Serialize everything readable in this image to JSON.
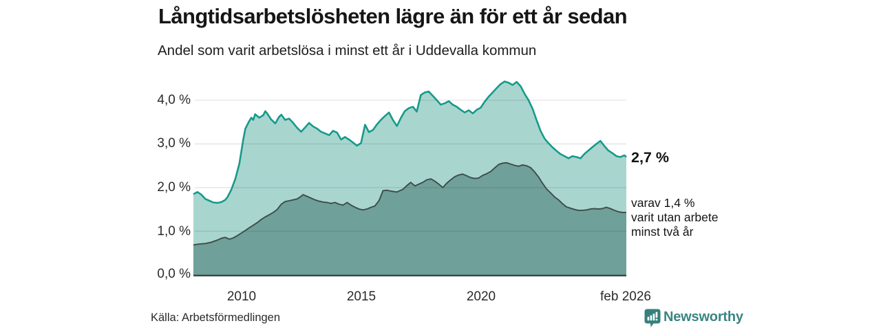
{
  "header": {
    "title": "Långtidsarbetslösheten lägre än för ett år sedan",
    "subtitle": "Andel som varit arbetslösa i minst ett år i Uddevalla kommun"
  },
  "chart": {
    "y_ticks": [
      "4,0 %",
      "3,0 %",
      "2,0 %",
      "1,0 %",
      "0,0 %"
    ],
    "x_ticks": [
      "2010",
      "2015",
      "2020",
      "feb 2026"
    ],
    "annotations": {
      "latest_total": "2,7 %",
      "sub_line1": "varav 1,4 %",
      "sub_line2": "varit utan arbete",
      "sub_line3": "minst två år"
    }
  },
  "footer": {
    "source": "Källa: Arbetsförmedlingen",
    "brand": "Newsworthy"
  },
  "colors": {
    "accent_teal": "#169a8a",
    "fill_light": "#a9d5cf",
    "fill_dark": "#6fa099",
    "line_dark": "#3d4c49",
    "baseline": "#3a4744",
    "gridline": "#d9d9d9",
    "brand_teal": "#35807c"
  },
  "chart_data": {
    "type": "area",
    "title": "Långtidsarbetslösheten lägre än för ett år sedan",
    "subtitle": "Andel som varit arbetslösa i minst ett år i Uddevalla kommun",
    "x_unit": "decimal_year",
    "x_range": [
      2008.0,
      2026.083
    ],
    "y_range": [
      0,
      4.6
    ],
    "y_ticks_pct": [
      0.0,
      1.0,
      2.0,
      3.0,
      4.0
    ],
    "x_tick_years": [
      2010,
      2015,
      2020,
      2026.083
    ],
    "grid": true,
    "latest": {
      "period": "feb 2026",
      "total_pct": 2.7,
      "two_years_pct": 1.4
    },
    "series": [
      {
        "name": "Arbetslösa minst ett år",
        "color": "#169a8a",
        "fill": "#a9d5cf",
        "points": [
          [
            2008.0,
            1.85
          ],
          [
            2008.17,
            1.9
          ],
          [
            2008.33,
            1.84
          ],
          [
            2008.5,
            1.74
          ],
          [
            2008.67,
            1.7
          ],
          [
            2008.83,
            1.66
          ],
          [
            2009.0,
            1.65
          ],
          [
            2009.17,
            1.67
          ],
          [
            2009.33,
            1.72
          ],
          [
            2009.42,
            1.78
          ],
          [
            2009.58,
            1.95
          ],
          [
            2009.75,
            2.2
          ],
          [
            2009.92,
            2.55
          ],
          [
            2010.08,
            3.1
          ],
          [
            2010.17,
            3.35
          ],
          [
            2010.33,
            3.52
          ],
          [
            2010.42,
            3.6
          ],
          [
            2010.5,
            3.55
          ],
          [
            2010.58,
            3.68
          ],
          [
            2010.75,
            3.6
          ],
          [
            2010.92,
            3.66
          ],
          [
            2011.0,
            3.75
          ],
          [
            2011.08,
            3.7
          ],
          [
            2011.25,
            3.56
          ],
          [
            2011.42,
            3.47
          ],
          [
            2011.58,
            3.62
          ],
          [
            2011.67,
            3.67
          ],
          [
            2011.83,
            3.55
          ],
          [
            2012.0,
            3.58
          ],
          [
            2012.17,
            3.48
          ],
          [
            2012.33,
            3.37
          ],
          [
            2012.5,
            3.28
          ],
          [
            2012.67,
            3.38
          ],
          [
            2012.83,
            3.48
          ],
          [
            2013.0,
            3.4
          ],
          [
            2013.17,
            3.35
          ],
          [
            2013.33,
            3.28
          ],
          [
            2013.5,
            3.24
          ],
          [
            2013.67,
            3.2
          ],
          [
            2013.83,
            3.3
          ],
          [
            2014.0,
            3.26
          ],
          [
            2014.17,
            3.1
          ],
          [
            2014.33,
            3.16
          ],
          [
            2014.5,
            3.1
          ],
          [
            2014.67,
            3.03
          ],
          [
            2014.83,
            2.96
          ],
          [
            2015.0,
            3.02
          ],
          [
            2015.17,
            3.44
          ],
          [
            2015.33,
            3.27
          ],
          [
            2015.5,
            3.32
          ],
          [
            2015.67,
            3.45
          ],
          [
            2015.83,
            3.55
          ],
          [
            2016.0,
            3.64
          ],
          [
            2016.17,
            3.72
          ],
          [
            2016.33,
            3.55
          ],
          [
            2016.5,
            3.41
          ],
          [
            2016.67,
            3.6
          ],
          [
            2016.83,
            3.75
          ],
          [
            2017.0,
            3.82
          ],
          [
            2017.17,
            3.85
          ],
          [
            2017.33,
            3.74
          ],
          [
            2017.5,
            4.12
          ],
          [
            2017.67,
            4.18
          ],
          [
            2017.83,
            4.2
          ],
          [
            2018.0,
            4.1
          ],
          [
            2018.17,
            4.0
          ],
          [
            2018.33,
            3.9
          ],
          [
            2018.5,
            3.93
          ],
          [
            2018.67,
            3.98
          ],
          [
            2018.83,
            3.9
          ],
          [
            2019.0,
            3.85
          ],
          [
            2019.17,
            3.78
          ],
          [
            2019.33,
            3.72
          ],
          [
            2019.5,
            3.77
          ],
          [
            2019.67,
            3.7
          ],
          [
            2019.83,
            3.78
          ],
          [
            2020.0,
            3.83
          ],
          [
            2020.17,
            3.97
          ],
          [
            2020.33,
            4.08
          ],
          [
            2020.5,
            4.18
          ],
          [
            2020.67,
            4.28
          ],
          [
            2020.83,
            4.37
          ],
          [
            2021.0,
            4.43
          ],
          [
            2021.17,
            4.4
          ],
          [
            2021.33,
            4.35
          ],
          [
            2021.5,
            4.42
          ],
          [
            2021.67,
            4.32
          ],
          [
            2021.83,
            4.15
          ],
          [
            2022.0,
            4.0
          ],
          [
            2022.17,
            3.8
          ],
          [
            2022.33,
            3.55
          ],
          [
            2022.5,
            3.3
          ],
          [
            2022.67,
            3.12
          ],
          [
            2022.83,
            3.02
          ],
          [
            2023.0,
            2.92
          ],
          [
            2023.17,
            2.84
          ],
          [
            2023.33,
            2.77
          ],
          [
            2023.5,
            2.72
          ],
          [
            2023.67,
            2.67
          ],
          [
            2023.83,
            2.72
          ],
          [
            2024.0,
            2.7
          ],
          [
            2024.17,
            2.67
          ],
          [
            2024.33,
            2.77
          ],
          [
            2024.5,
            2.85
          ],
          [
            2024.67,
            2.93
          ],
          [
            2024.83,
            3.0
          ],
          [
            2025.0,
            3.07
          ],
          [
            2025.17,
            2.95
          ],
          [
            2025.33,
            2.85
          ],
          [
            2025.5,
            2.79
          ],
          [
            2025.67,
            2.72
          ],
          [
            2025.83,
            2.7
          ],
          [
            2026.0,
            2.74
          ],
          [
            2026.083,
            2.7
          ]
        ]
      },
      {
        "name": "Varav utan arbete minst två år",
        "color": "#3d4c49",
        "fill": "#6fa099",
        "points": [
          [
            2008.0,
            0.69
          ],
          [
            2008.25,
            0.71
          ],
          [
            2008.5,
            0.72
          ],
          [
            2008.75,
            0.75
          ],
          [
            2009.0,
            0.8
          ],
          [
            2009.17,
            0.84
          ],
          [
            2009.33,
            0.86
          ],
          [
            2009.5,
            0.82
          ],
          [
            2009.67,
            0.85
          ],
          [
            2009.83,
            0.9
          ],
          [
            2010.0,
            0.96
          ],
          [
            2010.17,
            1.02
          ],
          [
            2010.33,
            1.08
          ],
          [
            2010.5,
            1.14
          ],
          [
            2010.67,
            1.2
          ],
          [
            2010.83,
            1.27
          ],
          [
            2011.0,
            1.33
          ],
          [
            2011.17,
            1.38
          ],
          [
            2011.33,
            1.43
          ],
          [
            2011.5,
            1.5
          ],
          [
            2011.67,
            1.62
          ],
          [
            2011.83,
            1.68
          ],
          [
            2012.0,
            1.7
          ],
          [
            2012.17,
            1.72
          ],
          [
            2012.33,
            1.74
          ],
          [
            2012.5,
            1.8
          ],
          [
            2012.58,
            1.84
          ],
          [
            2012.75,
            1.8
          ],
          [
            2012.92,
            1.76
          ],
          [
            2013.08,
            1.72
          ],
          [
            2013.25,
            1.69
          ],
          [
            2013.42,
            1.67
          ],
          [
            2013.58,
            1.66
          ],
          [
            2013.75,
            1.64
          ],
          [
            2013.92,
            1.66
          ],
          [
            2014.08,
            1.62
          ],
          [
            2014.25,
            1.6
          ],
          [
            2014.42,
            1.66
          ],
          [
            2014.58,
            1.6
          ],
          [
            2014.75,
            1.55
          ],
          [
            2014.92,
            1.51
          ],
          [
            2015.08,
            1.49
          ],
          [
            2015.25,
            1.51
          ],
          [
            2015.42,
            1.55
          ],
          [
            2015.58,
            1.58
          ],
          [
            2015.75,
            1.7
          ],
          [
            2015.92,
            1.93
          ],
          [
            2016.08,
            1.94
          ],
          [
            2016.25,
            1.92
          ],
          [
            2016.5,
            1.9
          ],
          [
            2016.75,
            1.96
          ],
          [
            2016.92,
            2.05
          ],
          [
            2017.08,
            2.12
          ],
          [
            2017.25,
            2.04
          ],
          [
            2017.42,
            2.08
          ],
          [
            2017.58,
            2.12
          ],
          [
            2017.75,
            2.18
          ],
          [
            2017.92,
            2.2
          ],
          [
            2018.08,
            2.15
          ],
          [
            2018.25,
            2.08
          ],
          [
            2018.42,
            2.0
          ],
          [
            2018.58,
            2.1
          ],
          [
            2018.75,
            2.18
          ],
          [
            2018.92,
            2.25
          ],
          [
            2019.08,
            2.29
          ],
          [
            2019.25,
            2.31
          ],
          [
            2019.42,
            2.27
          ],
          [
            2019.58,
            2.23
          ],
          [
            2019.75,
            2.21
          ],
          [
            2019.92,
            2.22
          ],
          [
            2020.08,
            2.28
          ],
          [
            2020.25,
            2.32
          ],
          [
            2020.42,
            2.37
          ],
          [
            2020.58,
            2.45
          ],
          [
            2020.75,
            2.53
          ],
          [
            2020.92,
            2.56
          ],
          [
            2021.08,
            2.57
          ],
          [
            2021.25,
            2.54
          ],
          [
            2021.42,
            2.51
          ],
          [
            2021.58,
            2.49
          ],
          [
            2021.75,
            2.52
          ],
          [
            2021.92,
            2.5
          ],
          [
            2022.08,
            2.46
          ],
          [
            2022.25,
            2.36
          ],
          [
            2022.42,
            2.24
          ],
          [
            2022.58,
            2.1
          ],
          [
            2022.75,
            1.97
          ],
          [
            2022.92,
            1.88
          ],
          [
            2023.08,
            1.79
          ],
          [
            2023.25,
            1.72
          ],
          [
            2023.42,
            1.63
          ],
          [
            2023.58,
            1.56
          ],
          [
            2023.75,
            1.53
          ],
          [
            2023.92,
            1.5
          ],
          [
            2024.08,
            1.48
          ],
          [
            2024.25,
            1.48
          ],
          [
            2024.42,
            1.49
          ],
          [
            2024.58,
            1.51
          ],
          [
            2024.75,
            1.52
          ],
          [
            2024.92,
            1.51
          ],
          [
            2025.08,
            1.52
          ],
          [
            2025.25,
            1.55
          ],
          [
            2025.42,
            1.52
          ],
          [
            2025.58,
            1.48
          ],
          [
            2025.75,
            1.45
          ],
          [
            2025.92,
            1.43
          ],
          [
            2026.083,
            1.43
          ]
        ]
      }
    ]
  }
}
